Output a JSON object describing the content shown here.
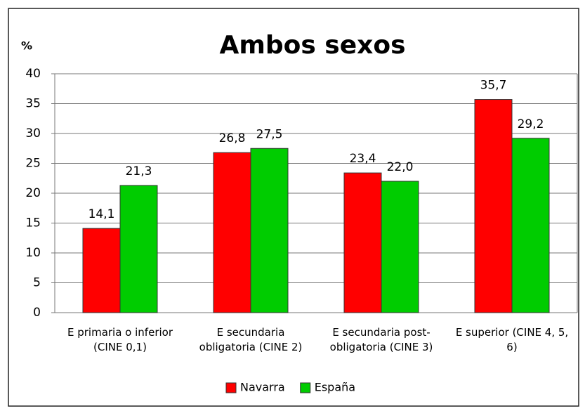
{
  "chart_data": {
    "type": "bar",
    "title": "Ambos sexos",
    "ylabel": "%",
    "categories": [
      "E primaria o inferior\n(CINE 0,1)",
      "E secundaria\nobligatoria (CINE 2)",
      "E secundaria post-\nobligatoria (CINE 3)",
      "E superior (CINE 4, 5,\n6)"
    ],
    "series": [
      {
        "name": "Navarra",
        "color": "#ff0000",
        "values": [
          14.1,
          26.8,
          23.4,
          35.7
        ],
        "value_labels": [
          "14,1",
          "26,8",
          "23,4",
          "35,7"
        ]
      },
      {
        "name": "España",
        "color": "#00cc00",
        "values": [
          21.3,
          27.5,
          22.0,
          29.2
        ],
        "value_labels": [
          "21,3",
          "27,5",
          "22,0",
          "29,2"
        ]
      }
    ],
    "ylim": [
      0,
      40
    ],
    "yticks": [
      0,
      5,
      10,
      15,
      20,
      25,
      30,
      35,
      40
    ],
    "grid": true,
    "legend": "bottom"
  }
}
